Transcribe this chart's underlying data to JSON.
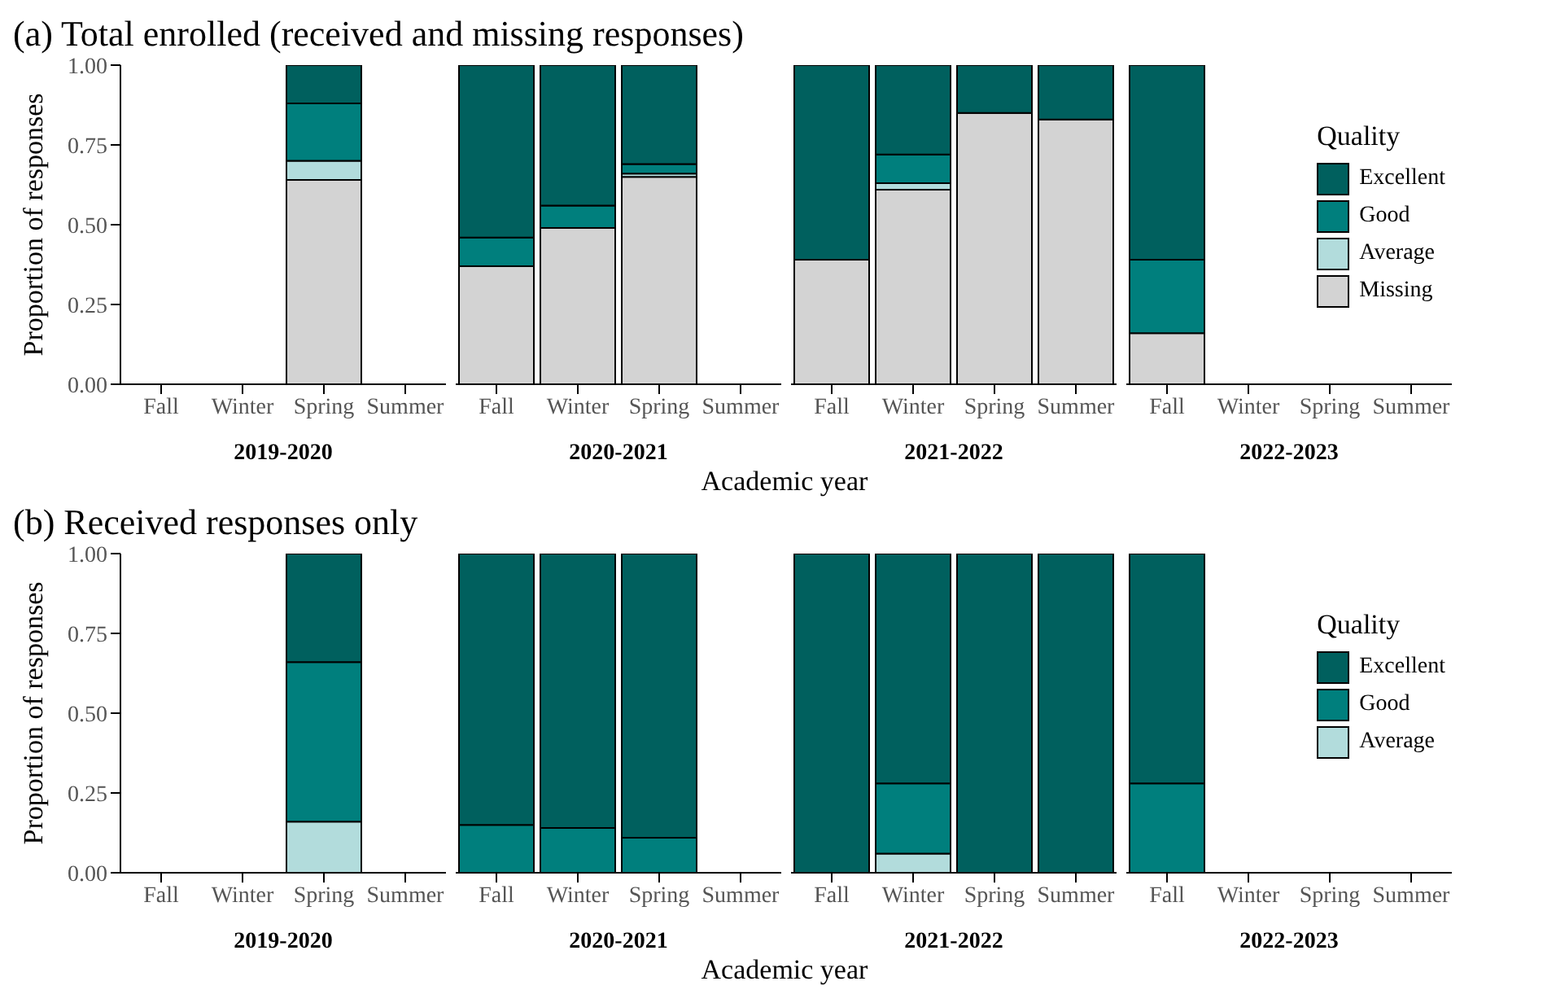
{
  "chart_data": [
    {
      "type": "bar",
      "title": "(a) Total enrolled (received and missing responses)",
      "ylabel": "Proportion of responses",
      "xlabel": "2019-2020",
      "annotations": [
        "Academic year"
      ],
      "categories": [
        "Fall",
        "Winter",
        "Spring",
        "Summer"
      ],
      "stacked": true,
      "ylim": [
        0,
        1
      ],
      "yticks": [
        {
          "value": 0,
          "label": "0.00"
        },
        {
          "value": 0.25,
          "label": "0.25"
        },
        {
          "value": 0.5,
          "label": "0.50"
        },
        {
          "value": 0.75,
          "label": "0.75"
        },
        {
          "value": 1,
          "label": "1.00"
        }
      ],
      "series": [
        {
          "color": "#d3d3d3",
          "values": [
            null,
            null,
            0.64,
            null
          ]
        },
        {
          "color": "#b2dcdc",
          "values": [
            null,
            null,
            0.06,
            null
          ]
        },
        {
          "color": "#007f7d",
          "values": [
            null,
            null,
            0.18,
            null
          ]
        },
        {
          "color": "#00605e",
          "values": [
            null,
            null,
            0.12,
            null
          ]
        }
      ]
    },
    {
      "type": "bar",
      "xlabel": "2020-2021",
      "categories": [
        "Fall",
        "Winter",
        "Spring",
        "Summer"
      ],
      "stacked": true,
      "tick_labels": "x",
      "ylim": [
        0,
        1
      ],
      "series": [
        {
          "color": "#d3d3d3",
          "values": [
            0.37,
            0.49,
            0.65,
            null
          ]
        },
        {
          "color": "#b2dcdc",
          "values": [
            0,
            0,
            0.01,
            null
          ]
        },
        {
          "color": "#007f7d",
          "values": [
            0.09,
            0.07,
            0.03,
            null
          ]
        },
        {
          "color": "#00605e",
          "values": [
            0.54,
            0.44,
            0.31,
            null
          ]
        }
      ]
    },
    {
      "type": "bar",
      "xlabel": "2021-2022",
      "categories": [
        "Fall",
        "Winter",
        "Spring",
        "Summer"
      ],
      "stacked": true,
      "tick_labels": "x",
      "ylim": [
        0,
        1
      ],
      "series": [
        {
          "color": "#d3d3d3",
          "values": [
            0.39,
            0.61,
            0.85,
            0.83
          ]
        },
        {
          "color": "#b2dcdc",
          "values": [
            0,
            0.02,
            0,
            0
          ]
        },
        {
          "color": "#007f7d",
          "values": [
            0,
            0.09,
            0,
            0
          ]
        },
        {
          "color": "#00605e",
          "values": [
            0.61,
            0.28,
            0.15,
            0.17
          ]
        }
      ]
    },
    {
      "type": "bar",
      "xlabel": "2022-2023",
      "legend_title": "Quality",
      "legend": "right",
      "categories": [
        "Fall",
        "Winter",
        "Spring",
        "Summer"
      ],
      "stacked": true,
      "tick_labels": "x",
      "ylim": [
        0,
        1
      ],
      "series": [
        {
          "name": "Missing",
          "color": "#d3d3d3",
          "values": [
            0.16,
            null,
            null,
            null
          ]
        },
        {
          "name": "Average",
          "color": "#b2dcdc",
          "values": [
            0,
            null,
            null,
            null
          ]
        },
        {
          "name": "Good",
          "color": "#007f7d",
          "values": [
            0.23,
            null,
            null,
            null
          ]
        },
        {
          "name": "Excellent",
          "color": "#00605e",
          "values": [
            0.61,
            null,
            null,
            null
          ]
        }
      ]
    },
    {
      "type": "bar",
      "title": "(b) Received responses only",
      "ylabel": "Proportion of responses",
      "xlabel": "2019-2020",
      "annotations": [
        "Academic year"
      ],
      "categories": [
        "Fall",
        "Winter",
        "Spring",
        "Summer"
      ],
      "stacked": true,
      "ylim": [
        0,
        1
      ],
      "yticks": [
        {
          "value": 0,
          "label": "0.00"
        },
        {
          "value": 0.25,
          "label": "0.25"
        },
        {
          "value": 0.5,
          "label": "0.50"
        },
        {
          "value": 0.75,
          "label": "0.75"
        },
        {
          "value": 1,
          "label": "1.00"
        }
      ],
      "series": [
        {
          "color": "#b2dcdc",
          "values": [
            null,
            null,
            0.16,
            null
          ]
        },
        {
          "color": "#007f7d",
          "values": [
            null,
            null,
            0.5,
            null
          ]
        },
        {
          "color": "#00605e",
          "values": [
            null,
            null,
            0.34,
            null
          ]
        }
      ]
    },
    {
      "type": "bar",
      "xlabel": "2020-2021",
      "categories": [
        "Fall",
        "Winter",
        "Spring",
        "Summer"
      ],
      "stacked": true,
      "tick_labels": "x",
      "ylim": [
        0,
        1
      ],
      "series": [
        {
          "color": "#b2dcdc",
          "values": [
            0,
            0,
            0,
            null
          ]
        },
        {
          "color": "#007f7d",
          "values": [
            0.15,
            0.14,
            0.11,
            null
          ]
        },
        {
          "color": "#00605e",
          "values": [
            0.85,
            0.86,
            0.89,
            null
          ]
        }
      ]
    },
    {
      "type": "bar",
      "xlabel": "2021-2022",
      "categories": [
        "Fall",
        "Winter",
        "Spring",
        "Summer"
      ],
      "stacked": true,
      "tick_labels": "x",
      "ylim": [
        0,
        1
      ],
      "series": [
        {
          "color": "#b2dcdc",
          "values": [
            0,
            0.06,
            0,
            0
          ]
        },
        {
          "color": "#007f7d",
          "values": [
            0,
            0.22,
            0,
            0
          ]
        },
        {
          "color": "#00605e",
          "values": [
            1,
            0.72,
            1,
            1
          ]
        }
      ]
    },
    {
      "type": "bar",
      "xlabel": "2022-2023",
      "legend_title": "Quality",
      "legend": "right",
      "categories": [
        "Fall",
        "Winter",
        "Spring",
        "Summer"
      ],
      "stacked": true,
      "tick_labels": "x",
      "ylim": [
        0,
        1
      ],
      "series": [
        {
          "name": "Average",
          "color": "#b2dcdc",
          "values": [
            0,
            null,
            null,
            null
          ]
        },
        {
          "name": "Good",
          "color": "#007f7d",
          "values": [
            0.28,
            null,
            null,
            null
          ]
        },
        {
          "name": "Excellent",
          "color": "#00605e",
          "values": [
            0.72,
            null,
            null,
            null
          ]
        }
      ]
    }
  ]
}
